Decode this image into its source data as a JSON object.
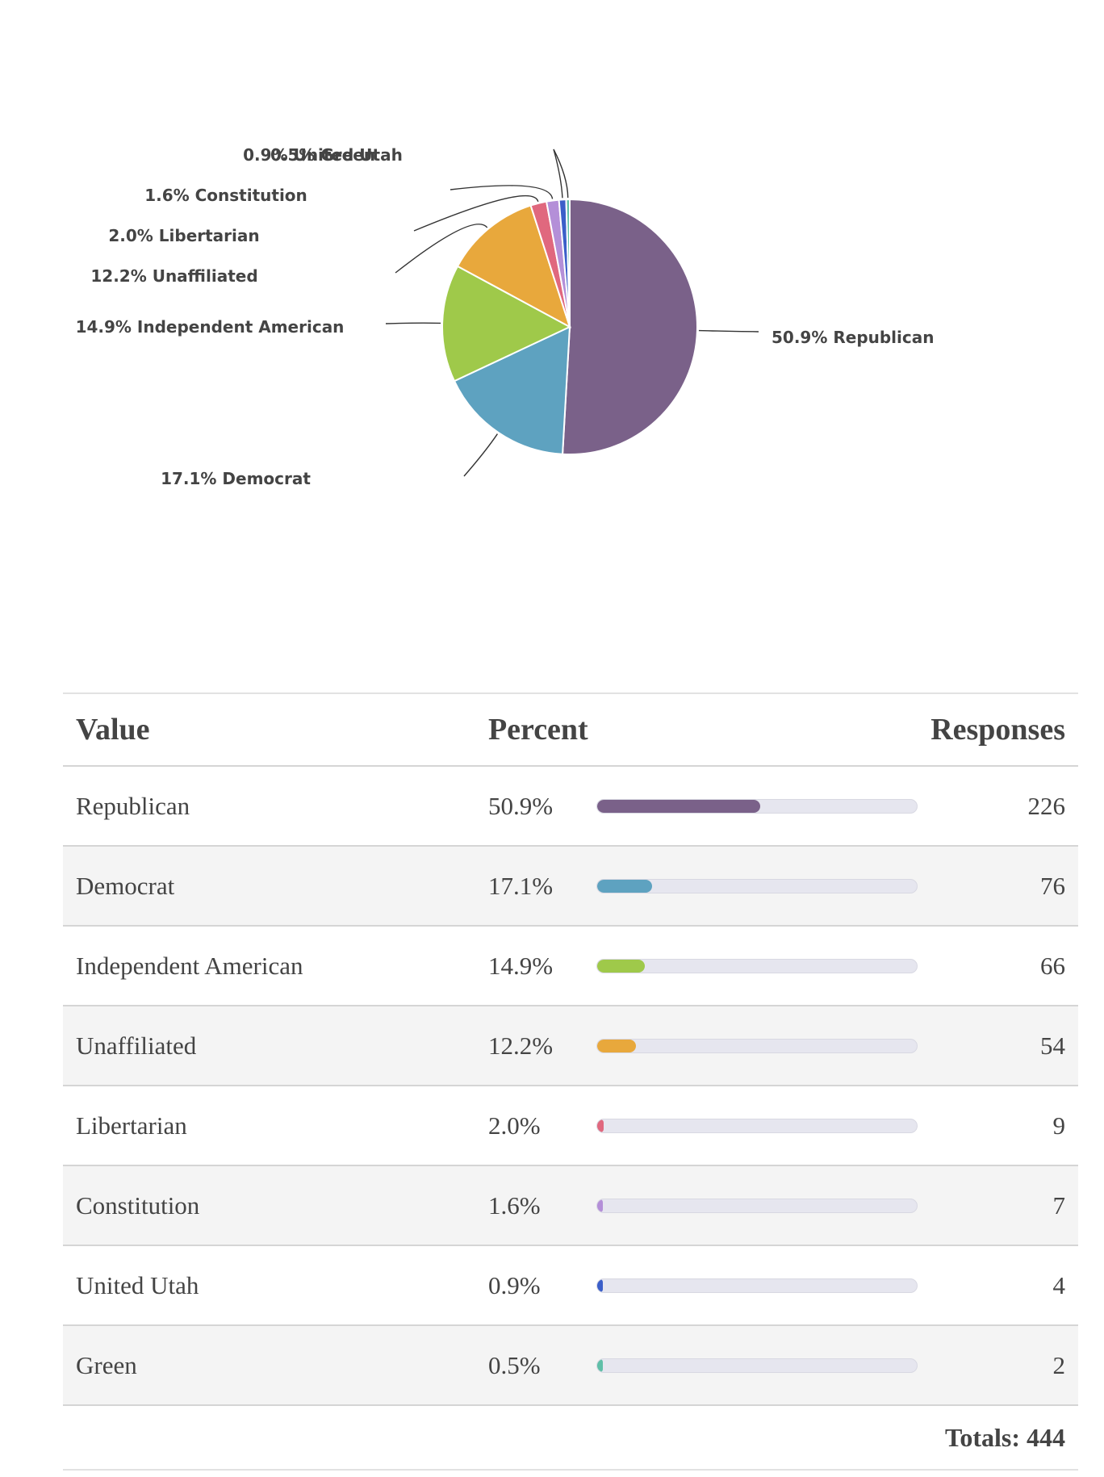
{
  "chart_data": {
    "type": "pie",
    "categories": [
      "Republican",
      "Democrat",
      "Independent American",
      "Unaffiliated",
      "Libertarian",
      "Constitution",
      "United Utah",
      "Green"
    ],
    "values": [
      226,
      76,
      66,
      54,
      9,
      7,
      4,
      2
    ],
    "percent_labels": [
      "50.9%",
      "17.1%",
      "14.9%",
      "12.2%",
      "2.0%",
      "1.6%",
      "0.9%",
      "0.5%"
    ],
    "slice_labels": [
      "50.9% Republican",
      "17.1% Democrat",
      "14.9% Independent American",
      "12.2% Unaffiliated",
      "2.0% Libertarian",
      "1.6% Constitution",
      "0.9% United Utah",
      "0.5% Green"
    ],
    "colors": [
      "#7a6189",
      "#5ea2c0",
      "#9fc94a",
      "#e8a83c",
      "#e0687e",
      "#b48fd8",
      "#3b5fc9",
      "#5fbfa8"
    ],
    "legend": "none"
  },
  "table": {
    "headers": {
      "value": "Value",
      "percent": "Percent",
      "responses": "Responses"
    },
    "rows": [
      {
        "value": "Republican",
        "percent": "50.9%",
        "responses": "226"
      },
      {
        "value": "Democrat",
        "percent": "17.1%",
        "responses": "76"
      },
      {
        "value": "Independent American",
        "percent": "14.9%",
        "responses": "66"
      },
      {
        "value": "Unaffiliated",
        "percent": "12.2%",
        "responses": "54"
      },
      {
        "value": "Libertarian",
        "percent": "2.0%",
        "responses": "9"
      },
      {
        "value": "Constitution",
        "percent": "1.6%",
        "responses": "7"
      },
      {
        "value": "United Utah",
        "percent": "0.9%",
        "responses": "4"
      },
      {
        "value": "Green",
        "percent": "0.5%",
        "responses": "2"
      }
    ],
    "totals_label": "Totals: 444"
  }
}
